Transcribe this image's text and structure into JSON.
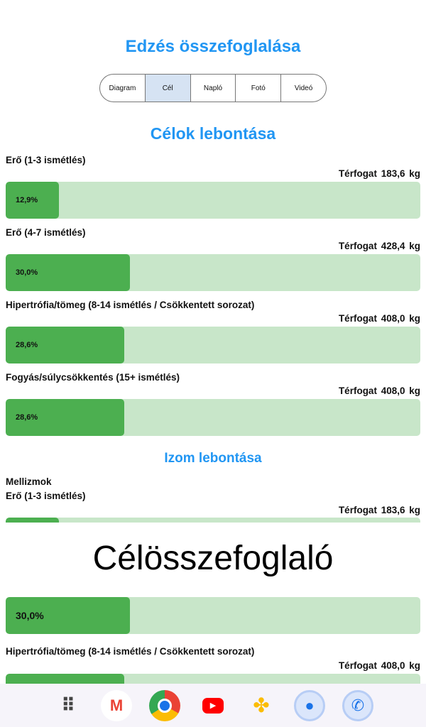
{
  "title": "Edzés összefoglalása",
  "tabs": [
    {
      "label": "Diagram"
    },
    {
      "label": "Cél",
      "active": true
    },
    {
      "label": "Napló"
    },
    {
      "label": "Fotó"
    },
    {
      "label": "Videó"
    }
  ],
  "goals_title": "Célok lebontása",
  "volume_label": "Térfogat",
  "goals": [
    {
      "label": "Erő (1-3 ismétlés)",
      "volume": "183,6 kg",
      "percent_text": "12,9%",
      "percent": 12.9
    },
    {
      "label": "Erő (4-7 ismétlés)",
      "volume": "428,4 kg",
      "percent_text": "30,0%",
      "percent": 30.0
    },
    {
      "label": "Hipertrófia/tömeg (8-14 ismétlés / Csökkentett sorozat)",
      "volume": "408,0 kg",
      "percent_text": "28,6%",
      "percent": 28.6
    },
    {
      "label": "Fogyás/súlycsökkentés (15+ ismétlés)",
      "volume": "408,0 kg",
      "percent_text": "28,6%",
      "percent": 28.6
    }
  ],
  "muscle_title": "Izom lebontása",
  "muscle": {
    "name": "Mellizmok",
    "items": [
      {
        "label": "Erő (1-3 ismétlés)",
        "volume": "183,6 kg",
        "percent": 12.9
      },
      {
        "percent_text": "30,0%",
        "percent": 30.0
      },
      {
        "label": "Hipertrófia/tömeg (8-14 ismétlés / Csökkentett sorozat)",
        "volume": "408,0 kg",
        "percent": 28.6
      }
    ]
  },
  "overlay_title": "Célösszefoglaló",
  "dock": [
    "apps-grid-icon",
    "gmail-icon",
    "chrome-icon",
    "youtube-icon",
    "photos-icon",
    "messages-icon",
    "phone-icon"
  ]
}
